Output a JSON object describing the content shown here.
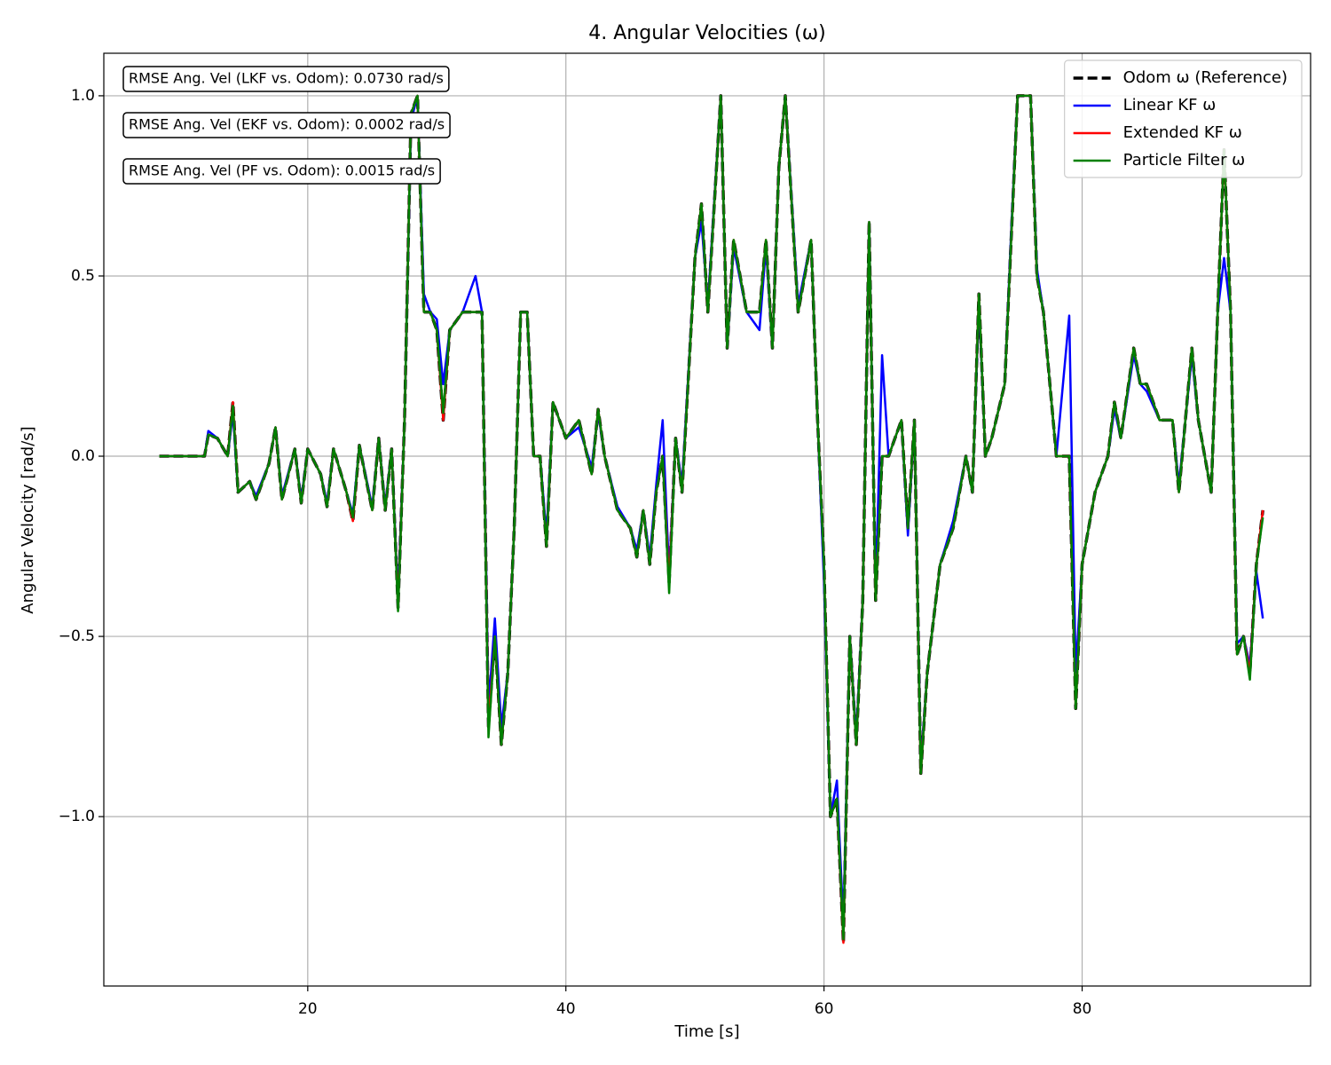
{
  "chart_data": {
    "type": "line",
    "title": "4. Angular Velocities (ω)",
    "xlabel": "Time [s]",
    "ylabel": "Angular Velocity [rad/s]",
    "xlim": [
      4.2,
      97.7
    ],
    "ylim": [
      -1.47,
      1.118
    ],
    "xticks": [
      20,
      40,
      60,
      80
    ],
    "yticks": [
      {
        "value": -1.0,
        "label": "−1.0"
      },
      {
        "value": -0.5,
        "label": "−0.5"
      },
      {
        "value": 0.0,
        "label": "0.0"
      },
      0.5,
      {
        "value": 1.0,
        "label": "1.0"
      }
    ],
    "grid": true,
    "legend": "upper right",
    "annotations": [
      "RMSE Ang. Vel (LKF vs. Odom): 0.0730 rad/s",
      "RMSE Ang. Vel (EKF vs. Odom): 0.0002 rad/s",
      "RMSE Ang. Vel (PF vs. Odom): 0.0015 rad/s"
    ],
    "x": [
      8.5,
      10,
      12,
      12.3,
      13,
      13.8,
      14.2,
      14.6,
      15.5,
      16,
      17,
      17.5,
      18,
      19,
      19.5,
      20,
      21,
      21.5,
      22,
      23,
      23.5,
      24,
      25,
      25.5,
      26,
      26.5,
      27,
      27.5,
      28,
      28.5,
      29,
      29.5,
      30,
      30.5,
      31,
      32,
      33,
      33.5,
      34,
      34.5,
      35,
      35.5,
      36,
      36.5,
      37,
      37.5,
      38,
      38.5,
      39,
      40,
      41,
      42,
      42.5,
      43,
      44,
      45,
      45.5,
      46,
      46.5,
      47,
      47.5,
      48,
      48.5,
      49,
      50,
      50.5,
      51,
      52,
      52.5,
      53,
      54,
      55,
      55.5,
      56,
      56.5,
      57,
      58,
      59,
      59.5,
      60,
      60.5,
      61,
      61.5,
      62,
      62.5,
      63,
      63.5,
      64,
      64.5,
      65,
      66,
      66.5,
      67,
      67.5,
      68,
      69,
      70,
      71,
      71.5,
      72,
      72.5,
      73,
      74,
      74.5,
      75,
      76,
      76.5,
      77,
      78,
      79,
      79.5,
      80,
      81,
      82,
      82.5,
      83,
      84,
      84.5,
      85,
      86,
      87,
      87.5,
      88,
      88.5,
      89,
      89.5,
      90,
      90.5,
      91,
      91.5,
      92,
      92.5,
      93,
      93.5,
      94
    ],
    "series": [
      {
        "name": "Odom ω (Reference)",
        "color": "#000000",
        "linestyle": "dashed",
        "values": [
          0,
          0,
          0,
          0.06,
          0.05,
          0,
          0.15,
          -0.1,
          -0.07,
          -0.12,
          -0.02,
          0.08,
          -0.12,
          0.02,
          -0.13,
          0.02,
          -0.05,
          -0.14,
          0.02,
          -0.1,
          -0.18,
          0.03,
          -0.15,
          0.05,
          -0.15,
          0.02,
          -0.42,
          0.1,
          0.95,
          1.0,
          0.4,
          0.4,
          0.35,
          0.1,
          0.35,
          0.4,
          0.4,
          0.4,
          -0.75,
          -0.5,
          -0.8,
          -0.6,
          -0.2,
          0.4,
          0.4,
          0,
          0,
          -0.25,
          0.15,
          0.05,
          0.1,
          -0.05,
          0.13,
          0,
          -0.15,
          -0.2,
          -0.28,
          -0.15,
          -0.3,
          -0.1,
          0,
          -0.35,
          0.05,
          -0.1,
          0.55,
          0.7,
          0.4,
          1.0,
          0.3,
          0.6,
          0.4,
          0.4,
          0.6,
          0.3,
          0.8,
          1.0,
          0.4,
          0.6,
          0.1,
          -0.3,
          -1.0,
          -0.95,
          -1.35,
          -0.5,
          -0.8,
          -0.4,
          0.65,
          -0.4,
          0,
          0,
          0.1,
          -0.2,
          0.1,
          -0.88,
          -0.6,
          -0.3,
          -0.2,
          0,
          -0.1,
          0.45,
          0,
          0.05,
          0.2,
          0.6,
          1.0,
          1.0,
          0.5,
          0.4,
          0,
          0,
          -0.7,
          -0.3,
          -0.1,
          0,
          0.15,
          0.05,
          0.3,
          0.2,
          0.2,
          0.1,
          0.1,
          -0.1,
          0.1,
          0.3,
          0.1,
          0,
          -0.1,
          0.4,
          0.85,
          0.4,
          -0.55,
          -0.5,
          -0.6,
          -0.3,
          -0.15
        ]
      },
      {
        "name": "Linear KF ω",
        "color": "#0000ff",
        "linestyle": "solid",
        "values": [
          0,
          0,
          0,
          0.07,
          0.05,
          0,
          0.12,
          -0.1,
          -0.07,
          -0.11,
          -0.02,
          0.08,
          -0.11,
          0.02,
          -0.12,
          0.02,
          -0.05,
          -0.13,
          0.02,
          -0.1,
          -0.16,
          0.03,
          -0.14,
          0.05,
          -0.14,
          0.02,
          -0.4,
          0.1,
          0.93,
          1.0,
          0.45,
          0.4,
          0.38,
          0.2,
          0.35,
          0.4,
          0.5,
          0.4,
          -0.7,
          -0.45,
          -0.75,
          -0.6,
          -0.2,
          0.4,
          0.4,
          0,
          0,
          -0.22,
          0.15,
          0.05,
          0.08,
          -0.03,
          0.12,
          0,
          -0.14,
          -0.2,
          -0.26,
          -0.15,
          -0.28,
          -0.08,
          0.1,
          -0.33,
          0.05,
          -0.08,
          0.55,
          0.65,
          0.42,
          1.0,
          0.3,
          0.58,
          0.4,
          0.35,
          0.58,
          0.3,
          0.8,
          1.0,
          0.42,
          0.6,
          0.1,
          -0.35,
          -1.0,
          -0.9,
          -1.3,
          -0.5,
          -0.78,
          -0.4,
          0.65,
          -0.38,
          0.28,
          0,
          0.1,
          -0.22,
          0.1,
          -0.86,
          -0.6,
          -0.3,
          -0.18,
          0,
          -0.1,
          0.43,
          0,
          0.05,
          0.2,
          0.62,
          1.0,
          1.0,
          0.52,
          0.4,
          0,
          0.39,
          -0.6,
          -0.3,
          -0.1,
          0,
          0.13,
          0.05,
          0.28,
          0.2,
          0.18,
          0.1,
          0.1,
          -0.08,
          0.1,
          0.28,
          0.1,
          0,
          -0.1,
          0.4,
          0.55,
          0.4,
          -0.52,
          -0.5,
          -0.58,
          -0.32,
          -0.45
        ]
      },
      {
        "name": "Extended KF ω",
        "color": "#ff0000",
        "linestyle": "solid",
        "values": [
          0,
          0,
          0,
          0.06,
          0.05,
          0,
          0.15,
          -0.1,
          -0.07,
          -0.12,
          -0.02,
          0.08,
          -0.12,
          0.02,
          -0.13,
          0.02,
          -0.05,
          -0.14,
          0.02,
          -0.1,
          -0.18,
          0.03,
          -0.15,
          0.05,
          -0.15,
          0.02,
          -0.42,
          0.1,
          0.95,
          1.0,
          0.4,
          0.4,
          0.35,
          0.1,
          0.35,
          0.4,
          0.4,
          0.4,
          -0.75,
          -0.5,
          -0.8,
          -0.6,
          -0.2,
          0.4,
          0.4,
          0,
          0,
          -0.25,
          0.15,
          0.05,
          0.1,
          -0.05,
          0.13,
          0,
          -0.15,
          -0.2,
          -0.28,
          -0.15,
          -0.3,
          -0.1,
          0,
          -0.35,
          0.05,
          -0.1,
          0.55,
          0.7,
          0.4,
          1.0,
          0.3,
          0.6,
          0.4,
          0.4,
          0.6,
          0.3,
          0.8,
          1.0,
          0.4,
          0.6,
          0.1,
          -0.3,
          -1.0,
          -0.95,
          -1.35,
          -0.5,
          -0.8,
          -0.4,
          0.65,
          -0.4,
          0,
          0,
          0.1,
          -0.2,
          0.1,
          -0.88,
          -0.6,
          -0.3,
          -0.2,
          0,
          -0.1,
          0.45,
          0,
          0.05,
          0.2,
          0.6,
          1.0,
          1.0,
          0.5,
          0.4,
          0,
          0,
          -0.7,
          -0.3,
          -0.1,
          0,
          0.15,
          0.05,
          0.3,
          0.2,
          0.2,
          0.1,
          0.1,
          -0.1,
          0.1,
          0.3,
          0.1,
          0,
          -0.1,
          0.4,
          0.85,
          0.4,
          -0.55,
          -0.5,
          -0.6,
          -0.3,
          -0.15
        ]
      },
      {
        "name": "Particle Filter ω",
        "color": "#008000",
        "linestyle": "solid",
        "values": [
          0,
          0,
          0,
          0.06,
          0.05,
          0,
          0.14,
          -0.1,
          -0.07,
          -0.12,
          -0.02,
          0.08,
          -0.12,
          0.02,
          -0.13,
          0.02,
          -0.05,
          -0.14,
          0.02,
          -0.1,
          -0.17,
          0.03,
          -0.15,
          0.05,
          -0.15,
          0.02,
          -0.43,
          0.1,
          0.95,
          1.0,
          0.4,
          0.4,
          0.35,
          0.12,
          0.35,
          0.4,
          0.4,
          0.4,
          -0.78,
          -0.5,
          -0.8,
          -0.6,
          -0.2,
          0.4,
          0.4,
          0,
          0,
          -0.25,
          0.15,
          0.05,
          0.1,
          -0.05,
          0.13,
          0,
          -0.15,
          -0.2,
          -0.28,
          -0.15,
          -0.3,
          -0.1,
          0,
          -0.38,
          0.05,
          -0.1,
          0.55,
          0.7,
          0.4,
          1.0,
          0.3,
          0.6,
          0.4,
          0.4,
          0.6,
          0.3,
          0.8,
          1.0,
          0.4,
          0.6,
          0.1,
          -0.3,
          -1.0,
          -0.95,
          -1.34,
          -0.5,
          -0.8,
          -0.4,
          0.65,
          -0.4,
          0,
          0,
          0.1,
          -0.2,
          0.1,
          -0.88,
          -0.6,
          -0.3,
          -0.2,
          0,
          -0.1,
          0.45,
          0,
          0.05,
          0.2,
          0.6,
          1.0,
          1.0,
          0.5,
          0.4,
          0,
          0,
          -0.7,
          -0.3,
          -0.1,
          0,
          0.15,
          0.05,
          0.3,
          0.2,
          0.2,
          0.1,
          0.1,
          -0.1,
          0.1,
          0.3,
          0.1,
          0,
          -0.1,
          0.4,
          0.85,
          0.4,
          -0.55,
          -0.5,
          -0.62,
          -0.3,
          -0.17
        ]
      }
    ]
  }
}
